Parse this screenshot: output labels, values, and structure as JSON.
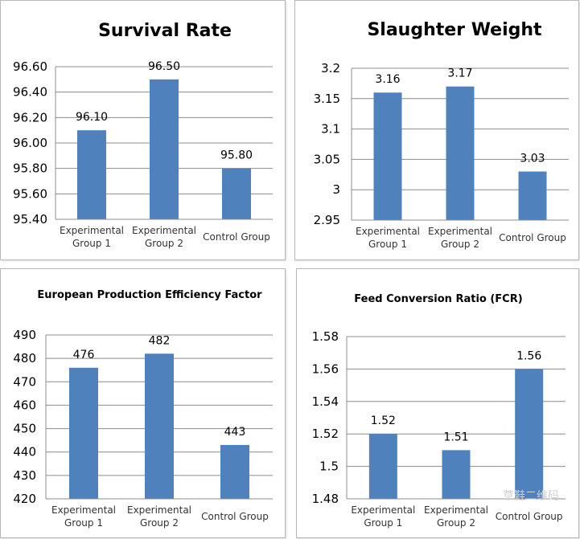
{
  "chart_data": [
    {
      "type": "bar",
      "title": "Survival Rate",
      "categories": [
        "Experimental Group 1",
        "Experimental Group 2",
        "Control Group"
      ],
      "category_lines": [
        [
          "Experimental",
          "Group 1"
        ],
        [
          "Experimental",
          "Group 2"
        ],
        [
          "Control Group"
        ]
      ],
      "values": [
        96.1,
        96.5,
        95.8
      ],
      "value_labels": [
        "96.10",
        "96.50",
        "95.80"
      ],
      "ylim": [
        95.4,
        96.6
      ],
      "yticks": [
        95.4,
        95.6,
        95.8,
        96.0,
        96.2,
        96.4,
        96.6
      ],
      "ytick_labels": [
        "95.40",
        "95.60",
        "95.80",
        "96.00",
        "96.20",
        "96.40",
        "96.60"
      ],
      "xlabel": "",
      "ylabel": "",
      "grid": true,
      "bar_color": "#4f81bd"
    },
    {
      "type": "bar",
      "title": "Slaughter Weight",
      "categories": [
        "Experimental Group 1",
        "Experimental Group 2",
        "Control Group"
      ],
      "category_lines": [
        [
          "Experimental",
          "Group 1"
        ],
        [
          "Experimental",
          "Group 2"
        ],
        [
          "Control Group"
        ]
      ],
      "values": [
        3.16,
        3.17,
        3.03
      ],
      "value_labels": [
        "3.16",
        "3.17",
        "3.03"
      ],
      "ylim": [
        2.95,
        3.2
      ],
      "yticks": [
        2.95,
        3,
        3.05,
        3.1,
        3.15,
        3.2
      ],
      "ytick_labels": [
        "2.95",
        "3",
        "3.05",
        "3.1",
        "3.15",
        "3.2"
      ],
      "xlabel": "",
      "ylabel": "",
      "grid": true,
      "bar_color": "#4f81bd"
    },
    {
      "type": "bar",
      "title": "European Production Efficiency Factor",
      "categories": [
        "Experimental Group 1",
        "Experimental Group 2",
        "Control Group"
      ],
      "category_lines": [
        [
          "Experimental",
          "Group 1"
        ],
        [
          "Experimental",
          "Group 2"
        ],
        [
          "Control Group"
        ]
      ],
      "values": [
        476,
        482,
        443
      ],
      "value_labels": [
        "476",
        "482",
        "443"
      ],
      "ylim": [
        420,
        490
      ],
      "yticks": [
        420,
        430,
        440,
        450,
        460,
        470,
        480,
        490
      ],
      "ytick_labels": [
        "420",
        "430",
        "440",
        "450",
        "460",
        "470",
        "480",
        "490"
      ],
      "xlabel": "",
      "ylabel": "",
      "grid": true,
      "bar_color": "#4f81bd"
    },
    {
      "type": "bar",
      "title": "Feed Conversion Ratio (FCR)",
      "categories": [
        "Experimental Group 1",
        "Experimental Group 2",
        "Control Group"
      ],
      "category_lines": [
        [
          "Experimental",
          "Group 1"
        ],
        [
          "Experimental",
          "Group 2"
        ],
        [
          "Control Group"
        ]
      ],
      "values": [
        1.52,
        1.51,
        1.56
      ],
      "value_labels": [
        "1.52",
        "1.51",
        "1.56"
      ],
      "ylim": [
        1.48,
        1.58
      ],
      "yticks": [
        1.48,
        1.5,
        1.52,
        1.54,
        1.56,
        1.58
      ],
      "ytick_labels": [
        "1.48",
        "1.5",
        "1.52",
        "1.54",
        "1.56",
        "1.58"
      ],
      "xlabel": "",
      "ylabel": "",
      "grid": true,
      "bar_color": "#4f81bd"
    }
  ],
  "watermark": "草鞋二维码"
}
